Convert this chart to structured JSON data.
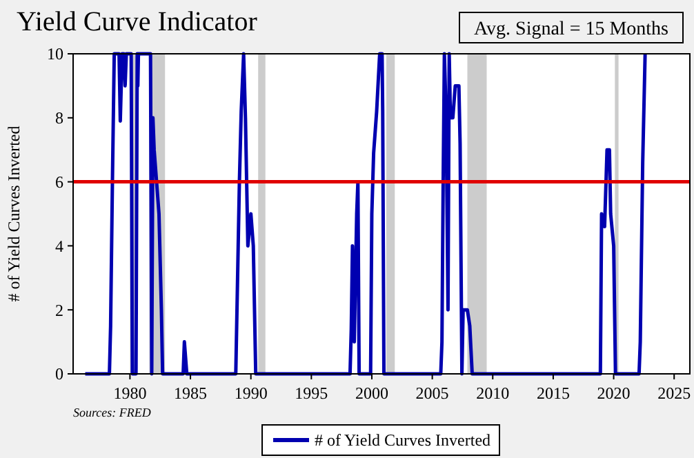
{
  "chart_data": {
    "type": "line",
    "title": "Yield Curve Indicator",
    "ylabel": "# of Yield Curves Inverted",
    "annotations": [
      "Avg. Signal = 15 Months",
      "Sources:  FRED"
    ],
    "x": [
      1976.3,
      1978.3,
      1978.4,
      1978.55,
      1978.7,
      1979.1,
      1979.2,
      1979.35,
      1979.5,
      1979.6,
      1979.7,
      1980.1,
      1980.2,
      1980.5,
      1980.6,
      1980.65,
      1980.7,
      1981.7,
      1981.8,
      1981.9,
      1982.0,
      1982.2,
      1982.4,
      1982.6,
      1982.7,
      1984.4,
      1984.5,
      1984.7,
      1988.75,
      1988.85,
      1988.95,
      1989.05,
      1989.2,
      1989.4,
      1989.55,
      1989.65,
      1989.75,
      1990.0,
      1990.2,
      1990.4,
      1998.2,
      1998.3,
      1998.4,
      1998.55,
      1998.75,
      1998.85,
      1998.95,
      1999.9,
      2000.0,
      2000.15,
      2000.4,
      2000.65,
      2000.85,
      2000.9,
      2000.95,
      2001.0,
      2005.7,
      2005.8,
      2005.9,
      2006.0,
      2006.15,
      2006.3,
      2006.4,
      2006.5,
      2006.7,
      2006.9,
      2007.2,
      2007.3,
      2007.45,
      2007.55,
      2007.9,
      2008.1,
      2008.3,
      2018.9,
      2019.0,
      2019.25,
      2019.45,
      2019.65,
      2019.75,
      2020.0,
      2020.15,
      2022.1,
      2022.2,
      2022.4,
      2022.6
    ],
    "series": [
      {
        "name": "# of Yield Curves Inverted",
        "color": "#0000b0",
        "values": [
          0,
          0,
          1.5,
          6,
          10,
          10,
          7.9,
          10,
          10,
          9,
          10,
          10,
          0,
          0,
          10,
          9,
          10,
          10,
          0,
          8,
          7,
          6,
          5,
          2,
          0,
          0,
          1,
          0,
          0,
          2,
          4,
          6,
          8.2,
          10,
          8,
          6,
          4,
          5,
          4,
          0,
          0,
          1.4,
          4,
          1,
          5,
          6,
          0,
          0,
          5,
          6.9,
          8.2,
          10,
          10,
          8.2,
          4,
          0,
          0,
          1,
          6,
          10,
          8,
          2,
          10,
          8,
          8,
          9,
          9,
          7.2,
          0,
          2,
          2,
          1.5,
          0,
          0,
          5,
          4.6,
          7,
          7,
          5,
          4,
          0,
          0,
          1,
          6.6,
          10
        ]
      }
    ],
    "xlim": [
      1975.3,
      2026.3
    ],
    "xticks": [
      1980,
      1985,
      1990,
      1995,
      2000,
      2005,
      2010,
      2015,
      2020,
      2025
    ],
    "ylim": [
      0,
      10
    ],
    "yticks": [
      0,
      2,
      4,
      6,
      8,
      10
    ],
    "ref_lines": [
      {
        "axis": "y",
        "value": 6,
        "color": "#e00000"
      }
    ],
    "bands": [
      {
        "axis": "x",
        "from": 1980.0,
        "to": 1980.6,
        "color": "#cccccc"
      },
      {
        "axis": "x",
        "from": 1981.6,
        "to": 1982.9,
        "color": "#cccccc"
      },
      {
        "axis": "x",
        "from": 1990.6,
        "to": 1991.2,
        "color": "#cccccc"
      },
      {
        "axis": "x",
        "from": 2001.2,
        "to": 2001.9,
        "color": "#cccccc"
      },
      {
        "axis": "x",
        "from": 2007.9,
        "to": 2009.5,
        "color": "#cccccc"
      },
      {
        "axis": "x",
        "from": 2020.1,
        "to": 2020.4,
        "color": "#cccccc"
      }
    ],
    "grid": false,
    "legend": "bottom",
    "line_style": "solid",
    "marker": "none"
  }
}
